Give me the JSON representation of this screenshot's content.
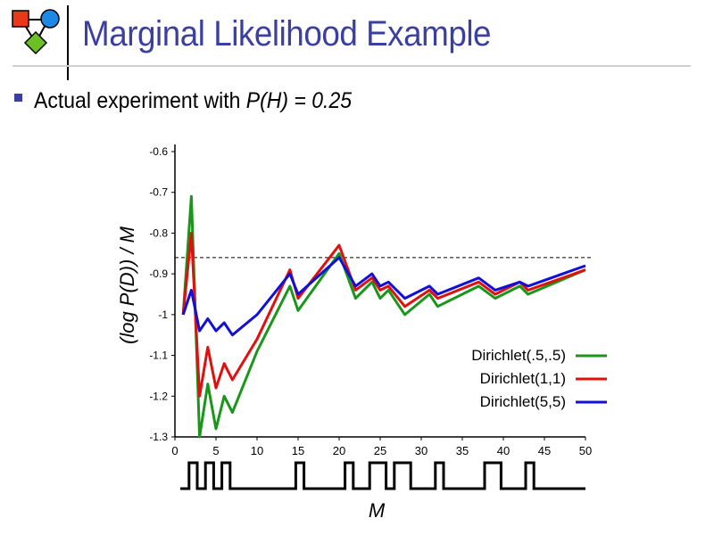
{
  "header": {
    "title": "Marginal Likelihood Example",
    "logo_icon": "bayes-network-icon"
  },
  "bullet": {
    "text_plain": "Actual experiment with ",
    "text_math": "P(H) = 0.25"
  },
  "colors": {
    "title": "#3b3fa0",
    "dirichlet_half": "#1a961a",
    "dirichlet_1": "#e01010",
    "dirichlet_5": "#1010d8"
  },
  "chart_data": {
    "type": "line",
    "title": "",
    "xlabel": "M",
    "ylabel": "(log P(D)) / M",
    "xlim": [
      0,
      50
    ],
    "ylim": [
      -1.3,
      -0.6
    ],
    "x_ticks": [
      "0",
      "5",
      "10",
      "15",
      "20",
      "25",
      "30",
      "35",
      "40",
      "45",
      "50"
    ],
    "y_ticks": [
      "-0.6",
      "-0.7",
      "-0.8",
      "-0.9",
      "-1",
      "-1.1",
      "-1.2",
      "-1.3"
    ],
    "grid": false,
    "legend_position": "lower-right",
    "reference_line": {
      "y": -0.86,
      "style": "dashed"
    },
    "series": [
      {
        "name": "Dirichlet(.5,.5)",
        "color": "#1a961a",
        "points": [
          [
            1,
            -1.0
          ],
          [
            2,
            -0.71
          ],
          [
            3,
            -1.3
          ],
          [
            4,
            -1.17
          ],
          [
            5,
            -1.28
          ],
          [
            6,
            -1.2
          ],
          [
            7,
            -1.24
          ],
          [
            10,
            -1.09
          ],
          [
            14,
            -0.93
          ],
          [
            15,
            -0.99
          ],
          [
            20,
            -0.85
          ],
          [
            22,
            -0.96
          ],
          [
            24,
            -0.92
          ],
          [
            25,
            -0.96
          ],
          [
            26,
            -0.94
          ],
          [
            28,
            -1.0
          ],
          [
            31,
            -0.95
          ],
          [
            32,
            -0.98
          ],
          [
            37,
            -0.93
          ],
          [
            39,
            -0.96
          ],
          [
            42,
            -0.93
          ],
          [
            43,
            -0.95
          ],
          [
            50,
            -0.89
          ]
        ]
      },
      {
        "name": "Dirichlet(1,1)",
        "color": "#e01010",
        "points": [
          [
            1,
            -1.0
          ],
          [
            2,
            -0.8
          ],
          [
            3,
            -1.2
          ],
          [
            4,
            -1.08
          ],
          [
            5,
            -1.18
          ],
          [
            6,
            -1.12
          ],
          [
            7,
            -1.16
          ],
          [
            10,
            -1.06
          ],
          [
            14,
            -0.89
          ],
          [
            15,
            -0.96
          ],
          [
            20,
            -0.83
          ],
          [
            22,
            -0.94
          ],
          [
            24,
            -0.91
          ],
          [
            25,
            -0.94
          ],
          [
            26,
            -0.93
          ],
          [
            28,
            -0.98
          ],
          [
            31,
            -0.94
          ],
          [
            32,
            -0.96
          ],
          [
            37,
            -0.92
          ],
          [
            39,
            -0.95
          ],
          [
            42,
            -0.92
          ],
          [
            43,
            -0.94
          ],
          [
            50,
            -0.89
          ]
        ]
      },
      {
        "name": "Dirichlet(5,5)",
        "color": "#1010d8",
        "points": [
          [
            1,
            -1.0
          ],
          [
            2,
            -0.94
          ],
          [
            3,
            -1.04
          ],
          [
            4,
            -1.01
          ],
          [
            5,
            -1.04
          ],
          [
            6,
            -1.02
          ],
          [
            7,
            -1.05
          ],
          [
            10,
            -1.0
          ],
          [
            14,
            -0.9
          ],
          [
            15,
            -0.95
          ],
          [
            20,
            -0.86
          ],
          [
            22,
            -0.93
          ],
          [
            24,
            -0.9
          ],
          [
            25,
            -0.93
          ],
          [
            26,
            -0.92
          ],
          [
            28,
            -0.96
          ],
          [
            31,
            -0.93
          ],
          [
            32,
            -0.95
          ],
          [
            37,
            -0.91
          ],
          [
            39,
            -0.94
          ],
          [
            42,
            -0.92
          ],
          [
            43,
            -0.93
          ],
          [
            50,
            -0.88
          ]
        ]
      }
    ],
    "coin_sequence": [
      0,
      1,
      0,
      1,
      0,
      1,
      0,
      0,
      0,
      0,
      0,
      0,
      0,
      0,
      1,
      0,
      0,
      0,
      0,
      0,
      1,
      0,
      0,
      1,
      1,
      0,
      1,
      1,
      0,
      0,
      0,
      1,
      0,
      0,
      0,
      0,
      0,
      1,
      1,
      0,
      0,
      0,
      1,
      0,
      0,
      0,
      0,
      0,
      0,
      0
    ]
  }
}
